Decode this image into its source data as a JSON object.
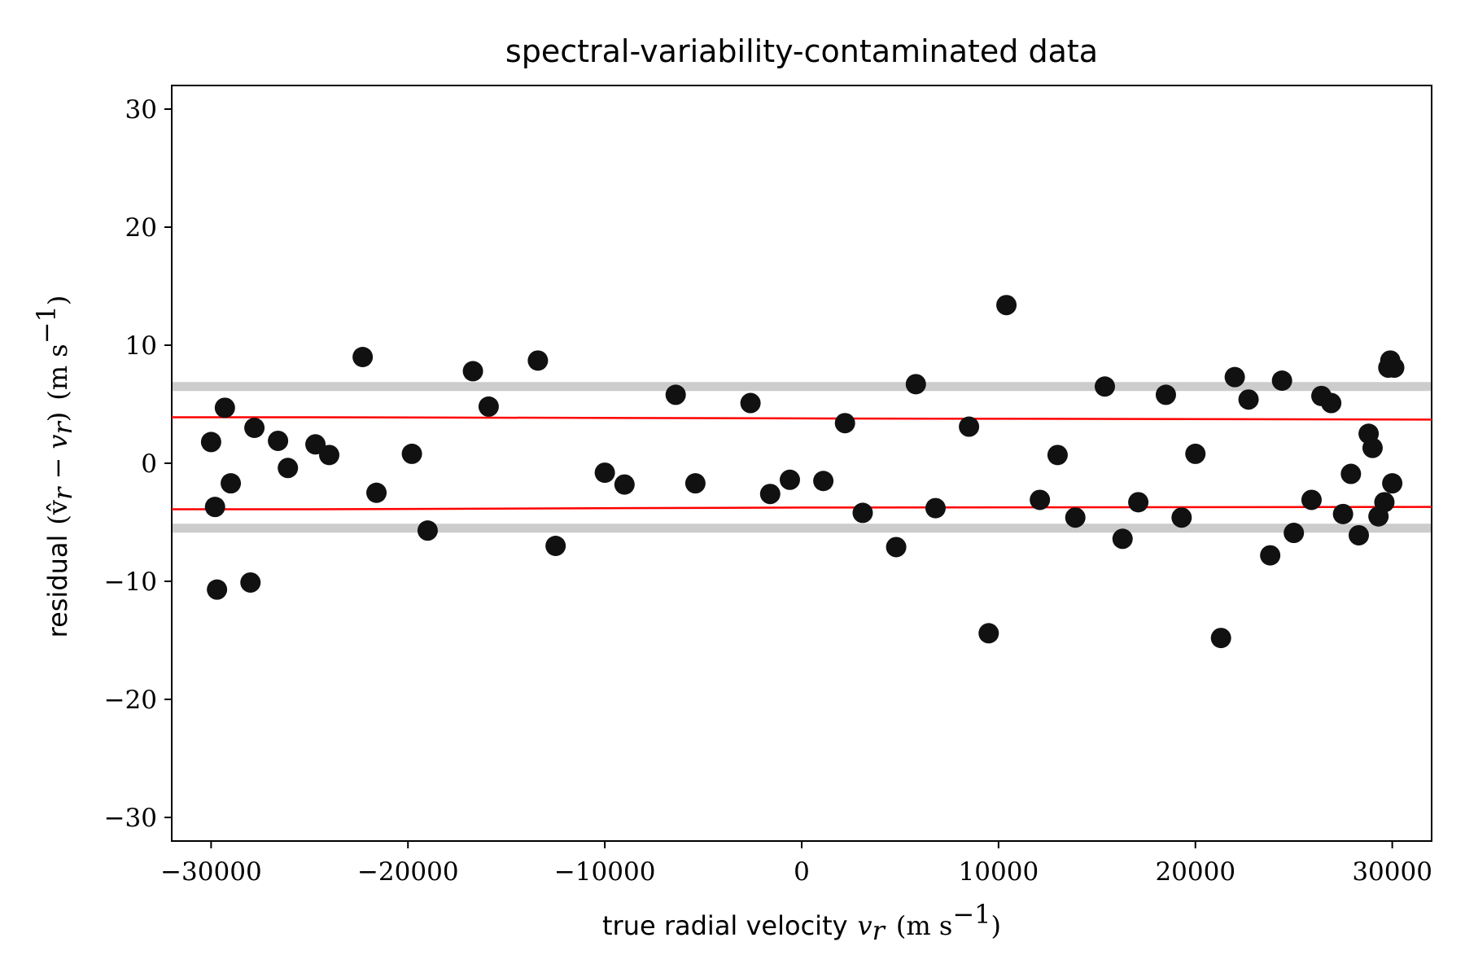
{
  "chart_data": {
    "type": "scatter",
    "title": "spectral-variability-contaminated data",
    "xlabel": {
      "text": "true radial velocity",
      "symbol": "v",
      "subscript": "r",
      "unit": "(m s",
      "unit_exp": "−1",
      "unit_close": ")"
    },
    "ylabel": {
      "text": "residual",
      "expr": "(v̂",
      "expr_sub": "r",
      "expr_mid": " − v",
      "expr_sub2": "r",
      "expr_close": ")",
      "unit": "(m s",
      "unit_exp": "−1",
      "unit_close": ")"
    },
    "xlim": [
      -32000,
      32000
    ],
    "ylim": [
      -32,
      32
    ],
    "xticks": [
      -30000,
      -20000,
      -10000,
      0,
      10000,
      20000,
      30000
    ],
    "xtick_labels": [
      "−30000",
      "−20000",
      "−10000",
      "0",
      "10000",
      "20000",
      "30000"
    ],
    "yticks": [
      -30,
      -20,
      -10,
      0,
      10,
      20,
      30
    ],
    "ytick_labels": [
      "−30",
      "−20",
      "−10",
      "0",
      "10",
      "20",
      "30"
    ],
    "grid": false,
    "colors": {
      "points": "#111111",
      "red_lines": "#ff0000",
      "gray_bands": "#cccccc"
    },
    "hlines_gray": [
      6.5,
      -5.5
    ],
    "red_lines": [
      {
        "x": [
          -32000,
          -25000,
          0,
          32000
        ],
        "y": [
          3.9,
          3.9,
          3.8,
          3.7
        ]
      },
      {
        "x": [
          -32000,
          -25000,
          0,
          32000
        ],
        "y": [
          -3.9,
          -3.9,
          -3.75,
          -3.7
        ]
      }
    ],
    "points": [
      [
        -30000,
        1.8
      ],
      [
        -29800,
        -3.7
      ],
      [
        -29700,
        -10.7
      ],
      [
        -29300,
        4.7
      ],
      [
        -29000,
        -1.7
      ],
      [
        -28000,
        -10.1
      ],
      [
        -27800,
        3.0
      ],
      [
        -26600,
        1.9
      ],
      [
        -26100,
        -0.4
      ],
      [
        -24700,
        1.6
      ],
      [
        -24000,
        0.7
      ],
      [
        -22300,
        9.0
      ],
      [
        -21600,
        -2.5
      ],
      [
        -19800,
        0.8
      ],
      [
        -19000,
        -5.7
      ],
      [
        -16700,
        7.8
      ],
      [
        -15900,
        4.8
      ],
      [
        -13400,
        8.7
      ],
      [
        -12500,
        -7.0
      ],
      [
        -10000,
        -0.8
      ],
      [
        -9000,
        -1.8
      ],
      [
        -6400,
        5.8
      ],
      [
        -5400,
        -1.7
      ],
      [
        -2600,
        5.1
      ],
      [
        -1600,
        -2.6
      ],
      [
        -600,
        -1.4
      ],
      [
        1100,
        -1.5
      ],
      [
        2200,
        3.4
      ],
      [
        3100,
        -4.2
      ],
      [
        4800,
        -7.1
      ],
      [
        5800,
        6.7
      ],
      [
        6800,
        -3.8
      ],
      [
        8500,
        3.1
      ],
      [
        9500,
        -14.4
      ],
      [
        10400,
        13.4
      ],
      [
        12100,
        -3.1
      ],
      [
        13000,
        0.7
      ],
      [
        13900,
        -4.6
      ],
      [
        15400,
        6.5
      ],
      [
        16300,
        -6.4
      ],
      [
        17100,
        -3.3
      ],
      [
        18500,
        5.8
      ],
      [
        19300,
        -4.6
      ],
      [
        20000,
        0.8
      ],
      [
        21300,
        -14.8
      ],
      [
        22000,
        7.3
      ],
      [
        22700,
        5.4
      ],
      [
        23800,
        -7.8
      ],
      [
        24400,
        7.0
      ],
      [
        25000,
        -5.9
      ],
      [
        25900,
        -3.1
      ],
      [
        26400,
        5.7
      ],
      [
        26900,
        5.1
      ],
      [
        27500,
        -4.3
      ],
      [
        27900,
        -0.9
      ],
      [
        28300,
        -6.1
      ],
      [
        28800,
        2.5
      ],
      [
        29000,
        1.3
      ],
      [
        29300,
        -4.5
      ],
      [
        29600,
        -3.3
      ],
      [
        29800,
        8.1
      ],
      [
        29900,
        8.7
      ],
      [
        30100,
        8.1
      ],
      [
        30000,
        -1.7
      ]
    ]
  }
}
